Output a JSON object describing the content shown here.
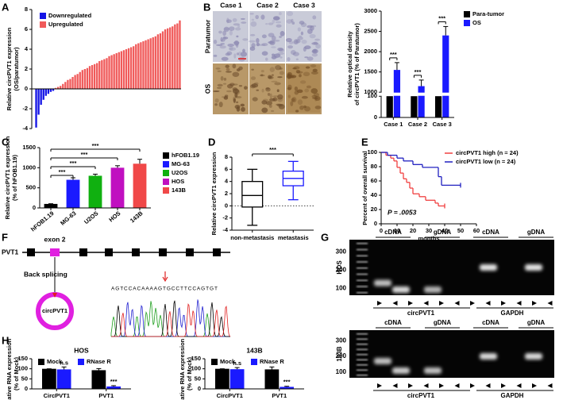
{
  "chart_data": [
    {
      "type": "bar",
      "label": "A",
      "ylabel": [
        "Relative circPVT1 expression",
        "(OS/paratumor)"
      ],
      "ylim": [
        -4,
        8
      ],
      "yticks": [
        -4,
        -2,
        0,
        2,
        4,
        6,
        8
      ],
      "series": [
        {
          "name": "Downregulated",
          "color": "#1414e6",
          "values": [
            -3.9,
            -2.6,
            -1.6,
            -1.1,
            -0.7,
            -0.5,
            -0.3,
            -0.2
          ]
        },
        {
          "name": "Upregulated",
          "color": "#f05a5a",
          "values": [
            0.1,
            0.2,
            0.3,
            0.5,
            0.7,
            0.9,
            1.0,
            1.2,
            1.4,
            1.5,
            1.7,
            1.9,
            2.0,
            2.1,
            2.3,
            2.4,
            2.5,
            2.6,
            2.8,
            2.9,
            3.0,
            3.1,
            3.3,
            3.4,
            3.5,
            3.6,
            3.7,
            3.8,
            3.9,
            4.0,
            4.1,
            4.2,
            4.3,
            4.5,
            4.6,
            4.7,
            4.8,
            4.9,
            5.0,
            5.1,
            5.2,
            5.3,
            5.5,
            5.6,
            5.8,
            6.0,
            6.1,
            6.2,
            6.3,
            6.5,
            6.6,
            6.9
          ]
        }
      ],
      "legend": "upper left"
    },
    {
      "type": "bar",
      "ylabel": [
        "Relative optical density",
        "of circPVT1 (% of Paratumor)"
      ],
      "categories": [
        "Case 1",
        "Case 2",
        "Case 3"
      ],
      "series": [
        {
          "name": "Para-tumor",
          "color": "#000000",
          "values": [
            100,
            100,
            100
          ]
        },
        {
          "name": "OS",
          "color": "#1a1aff",
          "values": [
            1550,
            1150,
            2400
          ],
          "errors": [
            180,
            150,
            220
          ]
        }
      ],
      "ylim": [
        0,
        3000
      ],
      "ybreak": [
        100,
        1000
      ],
      "yticks": [
        0,
        100,
        1000,
        1500,
        2000,
        2500,
        3000
      ],
      "annotations": [
        "***",
        "***",
        "***"
      ],
      "legend": "right"
    },
    {
      "type": "bar",
      "label": "C",
      "ylabel": [
        "Relative circPVT1 expression",
        "(% of hFOB1.19)"
      ],
      "categories": [
        "hFOB1.19",
        "MG-63",
        "U2OS",
        "HOS",
        "143B"
      ],
      "values": [
        100,
        700,
        800,
        1000,
        1100
      ],
      "errors": [
        5,
        50,
        40,
        50,
        110
      ],
      "colors": [
        "#000000",
        "#1a1aff",
        "#10b010",
        "#c010c0",
        "#f04848"
      ],
      "ylim": [
        0,
        1500
      ],
      "yticks": [
        0,
        500,
        1000,
        1500
      ],
      "annotations": [
        "***",
        "***",
        "***",
        "***"
      ],
      "legend": "right"
    },
    {
      "type": "box",
      "label": "D",
      "ylabel": "Relative circPVT1 expression",
      "categories": [
        "non-metastasis",
        "metastasis"
      ],
      "colors": [
        "#000000",
        "#1a1aff"
      ],
      "min": [
        -3.2,
        1.0
      ],
      "q1": [
        -0.2,
        3.3
      ],
      "median": [
        1.7,
        4.5
      ],
      "q3": [
        4.0,
        5.7
      ],
      "max": [
        6.0,
        7.3
      ],
      "ylim": [
        -4,
        8
      ],
      "yticks": [
        -4,
        -2,
        0,
        2,
        4,
        6,
        8
      ],
      "annotations": [
        "***"
      ]
    },
    {
      "type": "line",
      "label": "E",
      "ylabel": "Percent of overall survival",
      "xlabel": "months",
      "xlim": [
        0,
        60
      ],
      "xticks": [
        0,
        10,
        20,
        30,
        40,
        50,
        60
      ],
      "ylim": [
        0,
        100
      ],
      "yticks": [
        0,
        20,
        40,
        60,
        80,
        100
      ],
      "series": [
        {
          "name": "circPVT1 high (n = 24)",
          "color": "#f04040",
          "x": [
            0,
            3,
            6,
            8,
            10,
            12,
            14,
            16,
            18,
            20,
            24,
            28,
            34,
            36,
            40
          ],
          "values": [
            100,
            96,
            92,
            88,
            79,
            71,
            63,
            58,
            50,
            42,
            38,
            33,
            29,
            25,
            25
          ]
        },
        {
          "name": "circPVT1 low (n = 24)",
          "color": "#2020c0",
          "x": [
            0,
            4,
            10,
            14,
            20,
            26,
            36,
            38,
            50
          ],
          "values": [
            100,
            96,
            92,
            88,
            83,
            79,
            66,
            54,
            54
          ]
        }
      ],
      "annotation": "P = .0053",
      "legend": "upper right"
    },
    {
      "type": "bar",
      "label": "H",
      "title": "HOS",
      "ylabel": [
        "Relative RNA expression",
        "(% of Mock)"
      ],
      "categories": [
        "CircPVT1",
        "PVT1"
      ],
      "series": [
        {
          "name": "Mock",
          "color": "#000000",
          "values": [
            100,
            93
          ],
          "errors": [
            0,
            8
          ]
        },
        {
          "name": "RNase R",
          "color": "#1a1aff",
          "values": [
            97,
            12
          ],
          "errors": [
            12,
            4
          ]
        }
      ],
      "ylim": [
        0,
        150
      ],
      "yticks": [
        0,
        50,
        100,
        150
      ],
      "annotations": [
        "n.s",
        "***"
      ],
      "legend": "upper"
    },
    {
      "type": "bar",
      "title": "143B",
      "ylabel": [
        "Relative RNA expression",
        "(% of Mock)"
      ],
      "categories": [
        "CircPVT1",
        "PVT1"
      ],
      "series": [
        {
          "name": "Mock",
          "color": "#000000",
          "values": [
            100,
            97
          ],
          "errors": [
            0,
            12
          ]
        },
        {
          "name": "RNase R",
          "color": "#1a1aff",
          "values": [
            98,
            10
          ],
          "errors": [
            8,
            3
          ]
        }
      ],
      "ylim": [
        0,
        150
      ],
      "yticks": [
        0,
        50,
        100,
        150
      ],
      "annotations": [
        "n.s",
        "***"
      ],
      "legend": "upper"
    }
  ],
  "figure": {
    "b_images": {
      "label": "B",
      "cases": [
        "Case 1",
        "Case 2",
        "Case 3"
      ],
      "rows": [
        "Paratumor",
        "OS"
      ]
    },
    "f": {
      "label": "F",
      "gene": "PVT1",
      "exon": "exon 2",
      "back_splicing": "Back splicing",
      "circ": "circPVT1",
      "sequence": "AGTCCACAAAAGTGCCTTCCAGTGT"
    },
    "g": {
      "label": "G",
      "gels": [
        {
          "cell": "HOS",
          "lanes": [
            "cDNA",
            "gDNA",
            "cDNA",
            "gDNA"
          ],
          "ladder": [
            300,
            200,
            100
          ],
          "genes": [
            "circPVT1",
            "GAPDH"
          ]
        },
        {
          "cell": "143B",
          "lanes": [
            "cDNA",
            "gDNA",
            "cDNA",
            "gDNA"
          ],
          "ladder": [
            300,
            200,
            100
          ],
          "genes": [
            "circPVT1",
            "GAPDH"
          ]
        }
      ]
    }
  }
}
